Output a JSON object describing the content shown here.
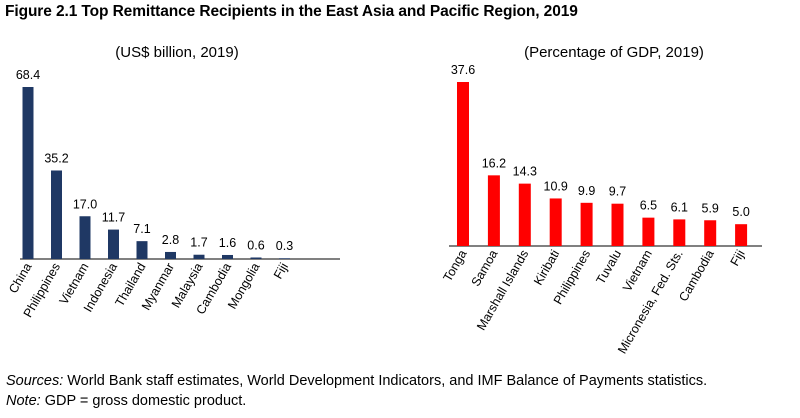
{
  "title": "Figure 2.1 Top Remittance Recipients in the East Asia and Pacific Region, 2019",
  "colors": {
    "left_bars": "#1f3864",
    "right_bars": "#ff0000",
    "axis": "#000000"
  },
  "chart_data": [
    {
      "type": "bar",
      "subtitle": "(US$ billion, 2019)",
      "categories": [
        "China",
        "Philippines",
        "Vietnam",
        "Indonesia",
        "Thailand",
        "Myanmar",
        "Malaysia",
        "Cambodia",
        "Mongolia",
        "Fiji"
      ],
      "values": [
        68.4,
        35.2,
        17.0,
        11.7,
        7.1,
        2.8,
        1.7,
        1.6,
        0.6,
        0.3
      ],
      "value_labels": [
        "68.4",
        "35.2",
        "17.0",
        "11.7",
        "7.1",
        "2.8",
        "1.7",
        "1.6",
        "0.6",
        "0.3"
      ],
      "color": "#1f3864",
      "grid": false,
      "legend": "none"
    },
    {
      "type": "bar",
      "subtitle": "(Percentage of GDP, 2019)",
      "categories": [
        "Tonga",
        "Samoa",
        "Marshall Islands",
        "Kiribati",
        "Philippines",
        "Tuvalu",
        "Vietnam",
        "Micronesia, Fed. Sts.",
        "Cambodia",
        "Fiji"
      ],
      "values": [
        37.6,
        16.2,
        14.3,
        10.9,
        9.9,
        9.7,
        6.5,
        6.1,
        5.9,
        5.0
      ],
      "value_labels": [
        "37.6",
        "16.2",
        "14.3",
        "10.9",
        "9.9",
        "9.7",
        "6.5",
        "6.1",
        "5.9",
        "5.0"
      ],
      "color": "#ff0000",
      "grid": false,
      "legend": "none"
    }
  ],
  "footer": {
    "sources_label": "Sources:",
    "sources_text": " World Bank staff estimates, World Development Indicators, and IMF Balance of Payments statistics.",
    "note_label": "Note:",
    "note_text": " GDP = gross domestic product."
  }
}
